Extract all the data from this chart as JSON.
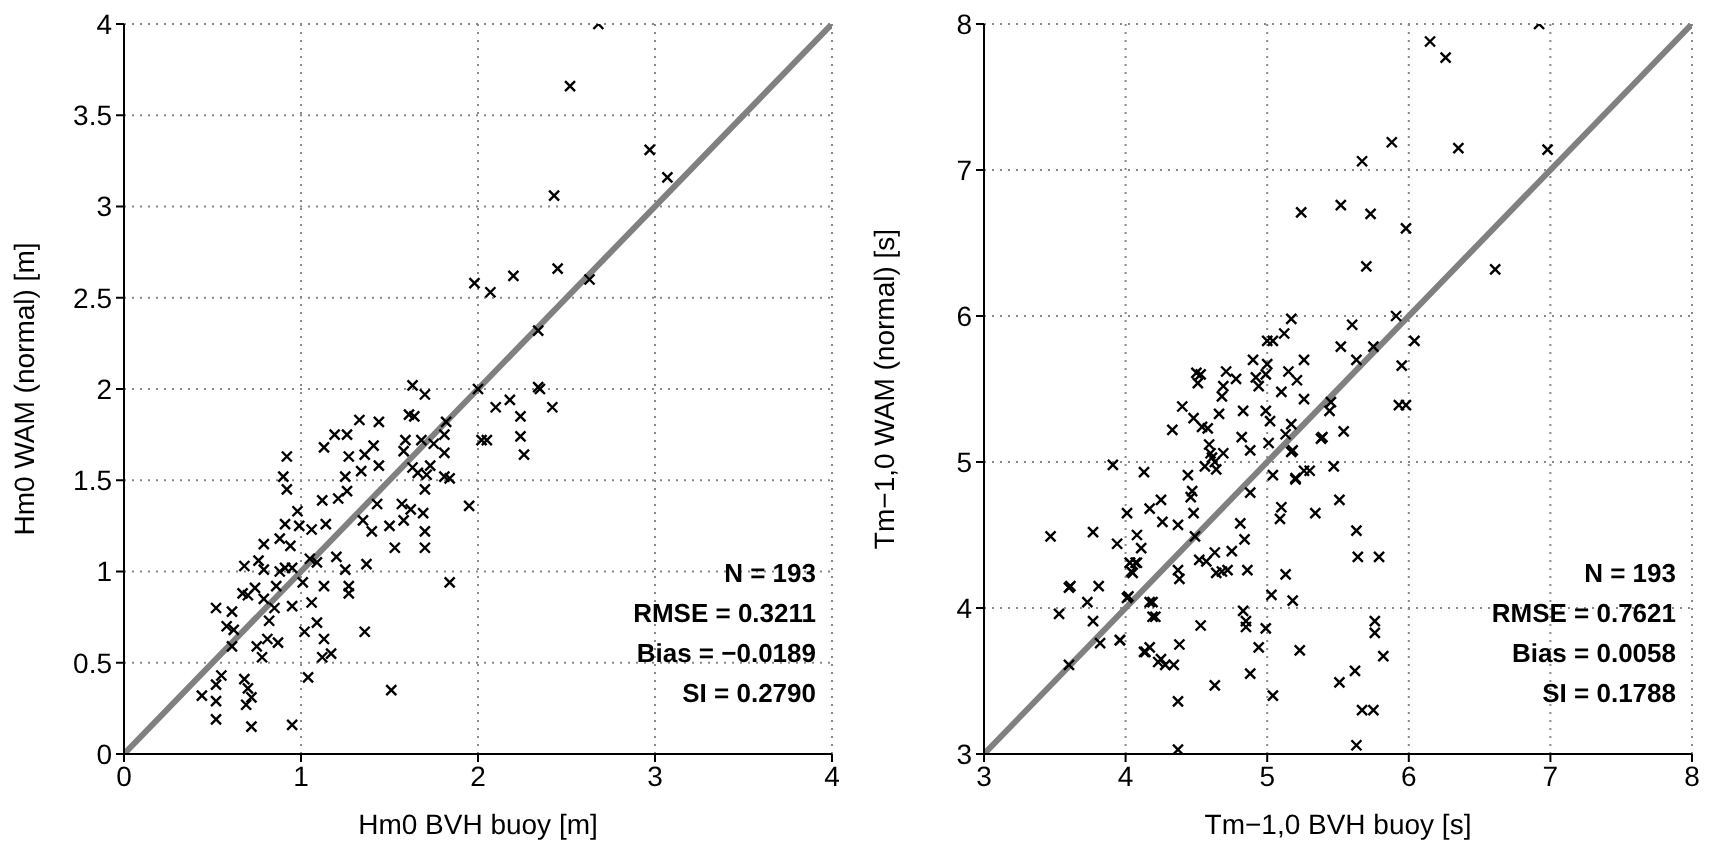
{
  "chart_data": [
    {
      "type": "scatter",
      "xlabel": "Hm0 BVH buoy [m]",
      "ylabel": "Hm0 WAM (normal) [m]",
      "xlim": [
        0,
        4
      ],
      "ylim": [
        0,
        4
      ],
      "xticks": [
        0,
        1,
        2,
        3,
        4
      ],
      "yticks": [
        0,
        0.5,
        1,
        1.5,
        2,
        2.5,
        3,
        3.5,
        4
      ],
      "grid": true,
      "marker": "cross",
      "annotations": [
        "N = 193",
        "RMSE = 0.3211",
        "Bias = −0.0189",
        "SI = 0.2790"
      ],
      "series": [
        {
          "color": "#000000",
          "x": [
            0.44,
            0.52,
            0.55,
            0.52,
            0.52,
            0.68,
            0.7,
            0.72,
            0.69,
            0.72,
            0.95,
            1.04,
            1.12,
            1.17,
            1.13,
            1.09,
            1.02,
            1.36,
            1.51,
            1.84,
            0.52,
            0.61,
            0.58,
            0.62,
            0.61,
            0.67,
            0.7,
            0.74,
            0.68,
            0.76,
            0.79,
            0.79,
            0.79,
            0.75,
            0.78,
            0.81,
            0.82,
            0.85,
            0.87,
            0.88,
            0.91,
            0.95,
            0.86,
            0.95,
            0.88,
            0.94,
            0.91,
            0.98,
            0.99,
            0.9,
            0.92,
            0.92,
            1.01,
            1.05,
            1.09,
            1.06,
            1.13,
            1.06,
            1.14,
            1.2,
            1.25,
            1.27,
            1.27,
            1.37,
            1.12,
            1.21,
            1.26,
            1.25,
            1.27,
            1.19,
            1.26,
            1.13,
            1.33,
            1.44,
            1.36,
            1.41,
            1.44,
            1.34,
            1.35,
            1.4,
            1.43,
            1.5,
            1.53,
            1.58,
            1.57,
            1.62,
            1.69,
            1.7,
            1.7,
            1.58,
            1.59,
            1.68,
            1.63,
            1.66,
            1.71,
            1.73,
            1.75,
            1.81,
            1.81,
            1.82,
            1.81,
            1.84,
            1.7,
            1.61,
            1.64,
            1.63,
            1.7,
            1.95,
            2.02,
            2.05,
            2.1,
            2.18,
            2.24,
            2.24,
            2.26,
            2.34,
            2.42,
            2.0,
            2.68,
            2.52,
            2.97,
            3.07,
            2.43,
            1.98,
            2.07,
            2.2,
            2.45,
            2.35,
            2.63,
            2.34
          ],
          "values": [
            0.32,
            0.38,
            0.43,
            0.29,
            0.19,
            0.41,
            0.36,
            0.31,
            0.27,
            0.15,
            0.16,
            0.42,
            0.53,
            0.55,
            0.63,
            0.72,
            0.67,
            0.67,
            0.35,
            0.94,
            0.8,
            0.78,
            0.7,
            0.68,
            0.59,
            0.88,
            0.87,
            0.91,
            1.03,
            1.06,
            1.15,
            1.01,
            0.85,
            0.59,
            0.53,
            0.63,
            0.73,
            0.8,
            0.61,
            1.0,
            1.02,
            1.02,
            0.92,
            0.81,
            1.18,
            1.14,
            1.26,
            1.33,
            1.25,
            1.52,
            1.45,
            1.63,
            0.94,
            1.07,
            1.05,
            0.83,
            0.92,
            1.23,
            1.26,
            1.08,
            1.01,
            0.92,
            0.88,
            1.04,
            1.39,
            1.4,
            1.44,
            1.52,
            1.63,
            1.75,
            1.75,
            1.68,
            1.83,
            1.82,
            1.64,
            1.69,
            1.58,
            1.55,
            1.28,
            1.22,
            1.37,
            1.25,
            1.13,
            1.28,
            1.37,
            1.34,
            1.32,
            1.22,
            1.13,
            1.66,
            1.72,
            1.72,
            1.57,
            1.54,
            1.53,
            1.58,
            1.7,
            1.65,
            1.75,
            1.82,
            1.52,
            1.51,
            1.45,
            1.86,
            1.85,
            2.02,
            1.97,
            1.36,
            1.72,
            1.72,
            1.9,
            1.94,
            1.85,
            1.74,
            1.64,
            2.01,
            1.9,
            2.0,
            4.0,
            3.66,
            3.31,
            3.16,
            3.06,
            2.58,
            2.53,
            2.62,
            2.66,
            2.0,
            2.6,
            2.32
          ]
        },
        {
          "type": "line",
          "color": "#808080",
          "marker": "none",
          "x": [
            0,
            4
          ],
          "values": [
            0,
            4
          ]
        }
      ]
    },
    {
      "type": "scatter",
      "xlabel": "Tm−1,0 BVH buoy [s]",
      "ylabel": "Tm−1,0 WAM (normal) [s]",
      "xlim": [
        3,
        8
      ],
      "ylim": [
        3,
        8
      ],
      "xticks": [
        3,
        4,
        5,
        6,
        7,
        8
      ],
      "yticks": [
        3,
        4,
        5,
        6,
        7,
        8
      ],
      "grid": true,
      "marker": "cross",
      "annotations": [
        "N = 193",
        "RMSE = 0.7621",
        "Bias = 0.0058",
        "SI = 0.1788"
      ],
      "series": [
        {
          "color": "#000000",
          "x": [
            3.47,
            3.77,
            3.91,
            3.94,
            4.01,
            4.08,
            4.11,
            4.03,
            4.07,
            4.13,
            4.17,
            4.25,
            4.26,
            4.37,
            4.4,
            4.33,
            4.48,
            4.5,
            4.53,
            4.51,
            4.54,
            4.58,
            4.44,
            4.47,
            4.46,
            4.48,
            4.49,
            4.59,
            4.6,
            4.61,
            4.63,
            4.64,
            4.56,
            4.69,
            4.66,
            4.69,
            4.71,
            4.68,
            4.78,
            4.83,
            4.82,
            4.88,
            4.88,
            4.81,
            4.84,
            4.75,
            4.63,
            4.57,
            4.9,
            4.92,
            4.94,
            4.99,
            5.0,
            4.99,
            5.02,
            5.01,
            5.04,
            5.0,
            5.04,
            5.12,
            5.17,
            5.15,
            5.21,
            5.1,
            5.17,
            5.13,
            5.26,
            5.26,
            5.17,
            5.2,
            5.26,
            5.1,
            5.09,
            5.38,
            5.34,
            5.24,
            5.13,
            4.86,
            4.68,
            4.37,
            3.61,
            4.01,
            4.19,
            4.21,
            3.96,
            4.17,
            4.13,
            4.25,
            4.34,
            4.38,
            4.53,
            4.83,
            4.85,
            4.85,
            4.99,
            4.94,
            4.88,
            4.63,
            4.37,
            4.37,
            5.04,
            5.03,
            5.18,
            5.23,
            5.51,
            5.62,
            5.67,
            5.75,
            5.63,
            5.82,
            5.76,
            5.76,
            5.51,
            5.63,
            5.64,
            5.79,
            4.04,
            4.38,
            4.64,
            4.72,
            4.52,
            6.92,
            6.15,
            6.26,
            5.88,
            5.67,
            6.35,
            6.98,
            5.52,
            5.73,
            5.98,
            5.7,
            6.61,
            5.91,
            5.6,
            5.52,
            5.75,
            5.63,
            6.04,
            5.95,
            5.45,
            5.44,
            5.93,
            5.98,
            5.54,
            5.39,
            5.18,
            5.2,
            5.3,
            5.47,
            3.6,
            3.81,
            3.73,
            3.53,
            3.77,
            3.82,
            3.96,
            3.6,
            4.02,
            4.03,
            4.05,
            4.08,
            4.14,
            4.17,
            4.19,
            4.23,
            4.28
          ],
          "values": [
            4.49,
            4.52,
            4.98,
            4.44,
            4.65,
            4.5,
            4.41,
            4.31,
            4.31,
            4.93,
            4.68,
            4.74,
            4.59,
            4.57,
            5.38,
            5.22,
            5.3,
            5.61,
            5.6,
            5.54,
            5.24,
            5.23,
            4.91,
            4.8,
            4.76,
            4.65,
            4.49,
            5.12,
            5.06,
            5.03,
            5.0,
            4.95,
            4.97,
            5.06,
            5.33,
            5.52,
            5.62,
            5.45,
            5.57,
            5.35,
            5.17,
            5.08,
            4.79,
            4.58,
            4.47,
            4.39,
            4.38,
            4.32,
            5.7,
            5.58,
            5.52,
            5.6,
            5.67,
            5.35,
            5.28,
            5.13,
            4.91,
            5.83,
            5.83,
            5.88,
            5.98,
            5.62,
            5.56,
            5.48,
            5.26,
            5.19,
            5.43,
            5.7,
            5.07,
            4.88,
            4.94,
            4.69,
            4.61,
            5.16,
            4.65,
            6.71,
            4.23,
            4.26,
            4.25,
            4.26,
            4.15,
            4.07,
            4.04,
            3.94,
            3.78,
            3.73,
            3.7,
            3.65,
            3.61,
            3.75,
            3.88,
            3.98,
            3.91,
            3.87,
            3.86,
            3.73,
            3.55,
            3.47,
            3.36,
            3.03,
            3.4,
            4.09,
            4.05,
            3.71,
            3.49,
            3.57,
            3.3,
            3.3,
            3.06,
            3.67,
            3.91,
            3.83,
            4.74,
            4.53,
            4.35,
            4.35,
            4.25,
            4.2,
            4.24,
            4.26,
            4.33,
            8.0,
            7.88,
            7.77,
            7.19,
            7.06,
            7.15,
            7.14,
            6.76,
            6.7,
            6.6,
            6.34,
            6.32,
            6.0,
            5.94,
            5.79,
            5.79,
            5.7,
            5.83,
            5.66,
            5.41,
            5.35,
            5.39,
            5.39,
            5.21,
            5.17,
            5.08,
            4.89,
            4.94,
            4.97,
            4.14,
            4.15,
            4.04,
            3.96,
            3.91,
            3.76,
            3.78,
            3.61,
            4.08,
            4.31,
            4.24,
            4.31,
            3.7,
            4.04,
            3.94,
            3.63,
            3.61
          ]
        },
        {
          "type": "line",
          "color": "#808080",
          "marker": "none",
          "x": [
            3,
            8
          ],
          "values": [
            3,
            8
          ]
        }
      ]
    }
  ]
}
